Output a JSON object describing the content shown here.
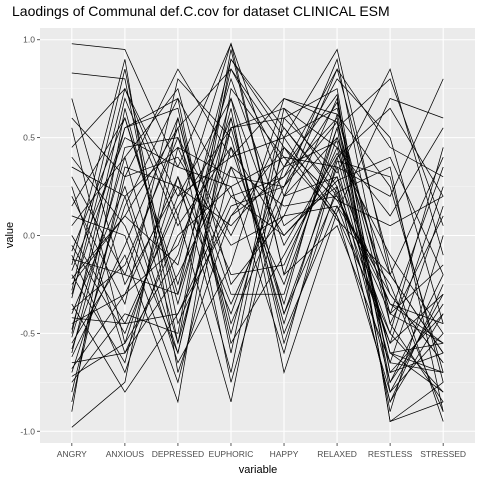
{
  "chart_data": {
    "type": "line",
    "title": "Laodings of Communal def.C.cov for dataset CLINICAL ESM",
    "xlabel": "variable",
    "ylabel": "value",
    "categories": [
      "ANGRY",
      "ANXIOUS",
      "DEPRESSED",
      "EUPHORIC",
      "HAPPY",
      "RELAXED",
      "RESTLESS",
      "STRESSED"
    ],
    "ylim": [
      -1.06,
      1.06
    ],
    "yticks": [
      -1.0,
      -0.5,
      0.0,
      0.5,
      1.0
    ],
    "ytick_labels": [
      "-1.0",
      "-0.5",
      "0.0",
      "0.5",
      "1.0"
    ],
    "grid": true,
    "legend": "none",
    "colors": {
      "panel": "#ebebeb",
      "grid_major": "#ffffff",
      "grid_minor": "#f5f5f5",
      "line": "#000000",
      "tick_text": "#4d4d4d"
    },
    "series": [
      {
        "values": [
          0.98,
          0.95,
          0.35,
          0.98,
          0.2,
          0.85,
          0.45,
          0.3
        ]
      },
      {
        "values": [
          0.83,
          0.8,
          -0.55,
          0.9,
          0.5,
          0.95,
          -0.2,
          -0.6
        ]
      },
      {
        "values": [
          0.6,
          0.3,
          0.85,
          0.4,
          0.7,
          0.62,
          -0.4,
          -0.55
        ]
      },
      {
        "values": [
          0.45,
          0.75,
          0.1,
          0.98,
          -0.2,
          0.55,
          0.8,
          0.05
        ]
      },
      {
        "values": [
          0.3,
          -0.2,
          0.55,
          0.85,
          0.35,
          0.48,
          -0.6,
          -0.7
        ]
      },
      {
        "values": [
          0.15,
          0.6,
          -0.3,
          0.55,
          0.65,
          0.25,
          -0.85,
          -0.4
        ]
      },
      {
        "values": [
          0.05,
          0.4,
          0.75,
          -0.25,
          0.1,
          0.7,
          -0.95,
          -0.75
        ]
      },
      {
        "values": [
          -0.05,
          -0.5,
          0.2,
          0.7,
          -0.4,
          0.35,
          0.2,
          0.8
        ]
      },
      {
        "values": [
          -0.15,
          0.9,
          -0.7,
          0.1,
          0.45,
          0.18,
          -0.3,
          -0.65
        ]
      },
      {
        "values": [
          -0.2,
          -0.65,
          0.45,
          0.3,
          0.25,
          0.9,
          -0.45,
          -0.85
        ]
      },
      {
        "values": [
          -0.25,
          0.1,
          -0.15,
          0.9,
          0.55,
          0.22,
          -0.55,
          -0.3
        ]
      },
      {
        "values": [
          -0.3,
          0.55,
          0.65,
          -0.55,
          -0.1,
          0.4,
          0.65,
          0.2
        ]
      },
      {
        "values": [
          -0.35,
          -0.8,
          -0.4,
          0.2,
          0.3,
          0.6,
          -0.7,
          -0.6
        ]
      },
      {
        "values": [
          -0.4,
          0.25,
          -0.6,
          0.6,
          -0.5,
          0.15,
          -0.25,
          -0.9
        ]
      },
      {
        "values": [
          -0.45,
          -0.3,
          0.3,
          -0.7,
          0.6,
          0.75,
          -0.8,
          -0.5
        ]
      },
      {
        "values": [
          -0.5,
          0.7,
          0.05,
          0.45,
          0.0,
          0.28,
          0.4,
          -0.2
        ]
      },
      {
        "values": [
          -0.55,
          -0.1,
          -0.85,
          0.75,
          0.4,
          0.1,
          -0.5,
          -0.8
        ]
      },
      {
        "values": [
          -0.6,
          0.45,
          0.5,
          -0.3,
          -0.3,
          0.55,
          -0.9,
          0.0
        ]
      },
      {
        "values": [
          -0.65,
          -0.6,
          -0.2,
          0.35,
          0.15,
          0.2,
          -0.35,
          -0.45
        ]
      },
      {
        "values": [
          -0.7,
          0.15,
          0.7,
          -0.6,
          0.65,
          0.45,
          0.1,
          0.55
        ]
      },
      {
        "values": [
          -0.75,
          -0.4,
          -0.5,
          0.95,
          -0.2,
          0.05,
          -0.65,
          -0.7
        ]
      },
      {
        "values": [
          -0.85,
          0.35,
          0.25,
          0.05,
          0.35,
          0.85,
          -0.15,
          -0.95
        ]
      },
      {
        "values": [
          -0.98,
          -0.75,
          0.6,
          -0.45,
          0.2,
          0.3,
          -0.75,
          -0.35
        ]
      },
      {
        "values": [
          -0.9,
          0.65,
          -0.35,
          0.65,
          -0.7,
          0.12,
          0.7,
          0.6
        ]
      },
      {
        "values": [
          -0.1,
          -0.7,
          0.1,
          -0.85,
          0.5,
          0.65,
          -0.4,
          0.35
        ]
      },
      {
        "values": [
          0.2,
          -0.35,
          0.8,
          0.5,
          -0.45,
          0.4,
          -0.6,
          -0.55
        ]
      },
      {
        "values": [
          0.55,
          -0.55,
          -0.1,
          0.8,
          0.05,
          0.25,
          -0.85,
          -0.25
        ]
      },
      {
        "values": [
          0.35,
          0.2,
          -0.65,
          -0.15,
          0.7,
          0.58,
          -0.45,
          0.1
        ]
      },
      {
        "values": [
          -0.18,
          0.5,
          0.35,
          0.25,
          -0.6,
          0.38,
          0.3,
          -0.75
        ]
      },
      {
        "values": [
          -0.62,
          -0.05,
          0.6,
          -0.5,
          0.45,
          0.08,
          -0.2,
          0.4
        ]
      },
      {
        "values": [
          -0.28,
          0.85,
          -0.45,
          0.15,
          0.25,
          0.68,
          -0.7,
          -0.4
        ]
      },
      {
        "values": [
          -0.42,
          -0.45,
          0.15,
          0.55,
          0.6,
          0.32,
          0.85,
          -0.1
        ]
      },
      {
        "values": [
          0.1,
          0.0,
          -0.75,
          0.35,
          -0.25,
          0.5,
          -0.3,
          -0.65
        ]
      },
      {
        "values": [
          -0.8,
          0.3,
          0.4,
          -0.05,
          0.1,
          0.15,
          -0.55,
          0.25
        ]
      },
      {
        "values": [
          0.7,
          -0.25,
          0.25,
          -0.4,
          0.35,
          0.72,
          -0.95,
          -0.85
        ]
      },
      {
        "values": [
          -0.08,
          0.6,
          -0.25,
          0.7,
          -0.05,
          0.42,
          -0.1,
          -0.5
        ]
      },
      {
        "values": [
          -0.38,
          -0.15,
          0.5,
          0.0,
          0.55,
          0.2,
          -0.4,
          -0.15
        ]
      },
      {
        "values": [
          -0.52,
          0.4,
          -0.55,
          0.45,
          -0.35,
          0.62,
          0.25,
          -0.7
        ]
      },
      {
        "values": [
          0.25,
          -0.6,
          0.0,
          0.25,
          0.4,
          0.35,
          -0.65,
          0.15
        ]
      },
      {
        "values": [
          -0.22,
          0.1,
          0.55,
          -0.75,
          0.2,
          0.5,
          -0.2,
          -0.6
        ]
      },
      {
        "values": [
          -0.68,
          -0.3,
          -0.05,
          0.6,
          -0.55,
          0.25,
          -0.5,
          0.45
        ]
      },
      {
        "values": [
          -0.32,
          0.75,
          0.2,
          0.4,
          0.5,
          0.1,
          -0.8,
          -0.3
        ]
      },
      {
        "values": [
          0.0,
          -0.45,
          -0.4,
          0.1,
          0.3,
          0.8,
          0.5,
          -0.45
        ]
      },
      {
        "values": [
          -0.58,
          0.2,
          0.45,
          -0.2,
          -0.15,
          0.45,
          -0.6,
          -0.8
        ]
      },
      {
        "values": [
          -0.12,
          -0.2,
          -0.3,
          0.85,
          0.45,
          0.18,
          0.05,
          0.2
        ]
      },
      {
        "values": [
          -0.48,
          0.55,
          0.7,
          0.2,
          0.0,
          0.3,
          -0.35,
          -0.55
        ]
      },
      {
        "values": [
          -0.72,
          -0.55,
          0.3,
          -0.35,
          0.25,
          0.58,
          -0.75,
          -0.2
        ]
      },
      {
        "values": [
          0.4,
          0.05,
          -0.6,
          0.55,
          -0.4,
          0.22,
          0.35,
          -0.9
        ]
      }
    ]
  }
}
